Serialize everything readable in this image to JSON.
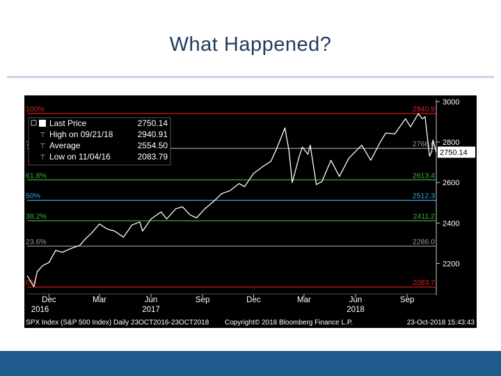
{
  "slide": {
    "title": "What Happened?"
  },
  "colors": {
    "title": "#1f3b5c",
    "rule": "#c6d3e3",
    "footer": "#1f5a8c",
    "chart_bg": "#000000",
    "price_line": "#ffffff",
    "fib_red": "#e0201b",
    "fib_grey": "#9a9a9a",
    "fib_green": "#3fae3f",
    "fib_blue": "#3aa7d8",
    "axis_text": "#ffffff",
    "last_price_tag_bg": "#ffffff",
    "last_price_tag_text": "#000000"
  },
  "chart_data": {
    "type": "line",
    "title": "",
    "xlabel": "",
    "ylabel": "",
    "ylim": [
      2050,
      3010
    ],
    "xlim": [
      "2016-10-23",
      "2018-10-23"
    ],
    "y_ticks": [
      "3000",
      "2800",
      "2600",
      "2400",
      "2200"
    ],
    "month_ticks": [
      {
        "label": "Dec",
        "date": "2016-12-01"
      },
      {
        "label": "Mar",
        "date": "2017-03-01"
      },
      {
        "label": "Jun",
        "date": "2017-06-01"
      },
      {
        "label": "Sep",
        "date": "2017-09-01"
      },
      {
        "label": "Dec",
        "date": "2017-12-01"
      },
      {
        "label": "Mar",
        "date": "2018-03-01"
      },
      {
        "label": "Jun",
        "date": "2018-06-01"
      },
      {
        "label": "Sep",
        "date": "2018-09-01"
      }
    ],
    "year_ticks": [
      {
        "label": "2016",
        "date": "2016-11-15"
      },
      {
        "label": "2017",
        "date": "2017-06-01"
      },
      {
        "label": "2018",
        "date": "2018-06-01"
      }
    ],
    "fib_levels": [
      {
        "left_label": "100%",
        "right_label": "2940.9",
        "value": 2940.9,
        "color_key": "fib_red"
      },
      {
        "left_label": "76.4%",
        "right_label": "2768.6",
        "value": 2768.6,
        "color_key": "fib_grey"
      },
      {
        "left_label": "61.8%",
        "right_label": "2613.4",
        "value": 2613.4,
        "color_key": "fib_green"
      },
      {
        "left_label": "50%",
        "right_label": "2512.3",
        "value": 2512.3,
        "color_key": "fib_blue"
      },
      {
        "left_label": "38.2%",
        "right_label": "2411.2",
        "value": 2411.2,
        "color_key": "fib_green"
      },
      {
        "left_label": "23.6%",
        "right_label": "2286.0",
        "value": 2286.0,
        "color_key": "fib_grey"
      },
      {
        "left_label": "0%",
        "right_label": "2083.7",
        "value": 2083.7,
        "color_key": "fib_red"
      }
    ],
    "last_price_tag": "2750.14",
    "legend": {
      "placement": "top-left",
      "header": "Last Price",
      "header_value": "2750.14",
      "rows": [
        {
          "label": "High on 09/21/18",
          "value": "2940.91"
        },
        {
          "label": "Average",
          "value": "2554.50"
        },
        {
          "label": "Low on 11/04/16",
          "value": "2083.79"
        }
      ]
    },
    "series": [
      {
        "color_key": "price_line",
        "x": [
          "2016-10-23",
          "2016-11-04",
          "2016-11-10",
          "2016-11-20",
          "2016-12-01",
          "2016-12-13",
          "2016-12-25",
          "2017-01-10",
          "2017-01-25",
          "2017-02-05",
          "2017-02-15",
          "2017-03-01",
          "2017-03-15",
          "2017-03-28",
          "2017-04-13",
          "2017-04-28",
          "2017-05-12",
          "2017-05-17",
          "2017-06-01",
          "2017-06-19",
          "2017-06-29",
          "2017-07-15",
          "2017-07-27",
          "2017-08-10",
          "2017-08-21",
          "2017-09-05",
          "2017-09-20",
          "2017-10-05",
          "2017-10-20",
          "2017-11-05",
          "2017-11-15",
          "2017-12-01",
          "2017-12-18",
          "2018-01-01",
          "2018-01-10",
          "2018-01-26",
          "2018-02-02",
          "2018-02-08",
          "2018-02-20",
          "2018-02-26",
          "2018-03-08",
          "2018-03-12",
          "2018-03-23",
          "2018-04-02",
          "2018-04-18",
          "2018-05-03",
          "2018-05-20",
          "2018-06-12",
          "2018-06-28",
          "2018-07-15",
          "2018-07-25",
          "2018-08-10",
          "2018-08-29",
          "2018-09-07",
          "2018-09-21",
          "2018-09-28",
          "2018-10-03",
          "2018-10-11",
          "2018-10-15",
          "2018-10-17",
          "2018-10-23"
        ],
        "y": [
          2140,
          2085,
          2160,
          2190,
          2205,
          2265,
          2255,
          2275,
          2290,
          2325,
          2350,
          2395,
          2370,
          2360,
          2330,
          2390,
          2405,
          2360,
          2420,
          2455,
          2420,
          2470,
          2480,
          2440,
          2425,
          2470,
          2505,
          2545,
          2560,
          2595,
          2580,
          2645,
          2680,
          2705,
          2760,
          2870,
          2760,
          2600,
          2725,
          2775,
          2740,
          2785,
          2590,
          2605,
          2710,
          2630,
          2720,
          2785,
          2710,
          2800,
          2845,
          2840,
          2915,
          2875,
          2940,
          2915,
          2925,
          2730,
          2755,
          2810,
          2750
        ]
      }
    ],
    "footer": {
      "left": "SPX Index (S&P 500 Index)  Daily 23OCT2016-23OCT2018",
      "center": "Copyright© 2018 Bloomberg Finance L.P.",
      "right": "23-Oct-2018 15:43:43"
    }
  }
}
